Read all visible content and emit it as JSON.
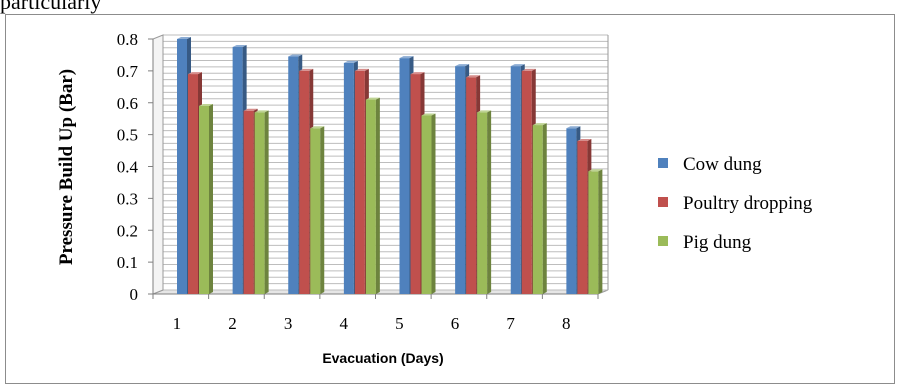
{
  "page_text": {
    "cut_line": "particularly"
  },
  "chart_data": {
    "type": "bar",
    "categories": [
      "1",
      "2",
      "3",
      "4",
      "5",
      "6",
      "7",
      "8"
    ],
    "series": [
      {
        "name": "Cow dung",
        "color": "#4f81bd",
        "values": [
          0.8,
          0.775,
          0.745,
          0.725,
          0.74,
          0.715,
          0.715,
          0.52
        ]
      },
      {
        "name": "Poultry dropping",
        "color": "#c0504d",
        "values": [
          0.69,
          0.575,
          0.7,
          0.7,
          0.69,
          0.68,
          0.7,
          0.48
        ]
      },
      {
        "name": "Pig dung",
        "color": "#9bbb59",
        "values": [
          0.59,
          0.57,
          0.52,
          0.61,
          0.56,
          0.57,
          0.53,
          0.385
        ]
      }
    ],
    "yticks": [
      "0",
      "0.1",
      "0.2",
      "0.3",
      "0.4",
      "0.5",
      "0.6",
      "0.7",
      "0.8"
    ],
    "ylim": [
      0,
      0.8
    ],
    "ylabel": "Pressure Build Up (Bar)",
    "xlabel": "Evacuation  (Days)",
    "grid": true,
    "legend_position": "right"
  }
}
